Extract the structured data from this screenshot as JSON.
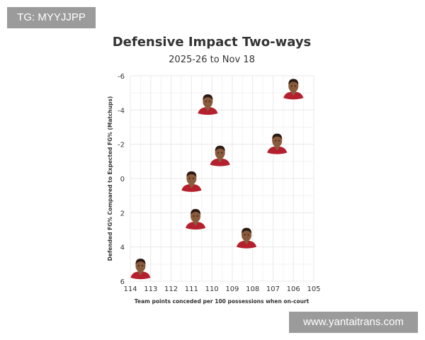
{
  "watermarks": {
    "top_left": "TG: MYYJJPP",
    "bottom_right": "www.yantaitrans.com"
  },
  "chart_data": {
    "type": "scatter",
    "title": "Defensive Impact Two-ways",
    "subtitle": "2025-26 to Nov 18",
    "xlabel": "Team points conceded per 100 possessions when on-court",
    "ylabel": "Defended FG% Compared to Expected FG% (Matchups)",
    "xlim": [
      114,
      105
    ],
    "ylim": [
      6,
      -6
    ],
    "x_reversed": true,
    "y_reversed": true,
    "x_ticks": [
      "114",
      "113",
      "112",
      "111",
      "110",
      "109",
      "108",
      "107",
      "106",
      "105"
    ],
    "y_ticks": [
      "-6",
      "-4",
      "-2",
      "0",
      "2",
      "4",
      "6"
    ],
    "grid": true,
    "marker": "player-headshot",
    "points": [
      {
        "x": 113.5,
        "y": 5.3
      },
      {
        "x": 111.0,
        "y": 0.2
      },
      {
        "x": 110.8,
        "y": 2.4
      },
      {
        "x": 110.2,
        "y": -4.3
      },
      {
        "x": 109.6,
        "y": -1.3
      },
      {
        "x": 108.3,
        "y": 3.5
      },
      {
        "x": 106.8,
        "y": -2.0
      },
      {
        "x": 106.0,
        "y": -5.2
      }
    ],
    "colors": {
      "jersey": "#b5202e",
      "skin": "#8a5a3c",
      "hair": "#2a1a12",
      "grid": "#e8e8e8"
    }
  }
}
